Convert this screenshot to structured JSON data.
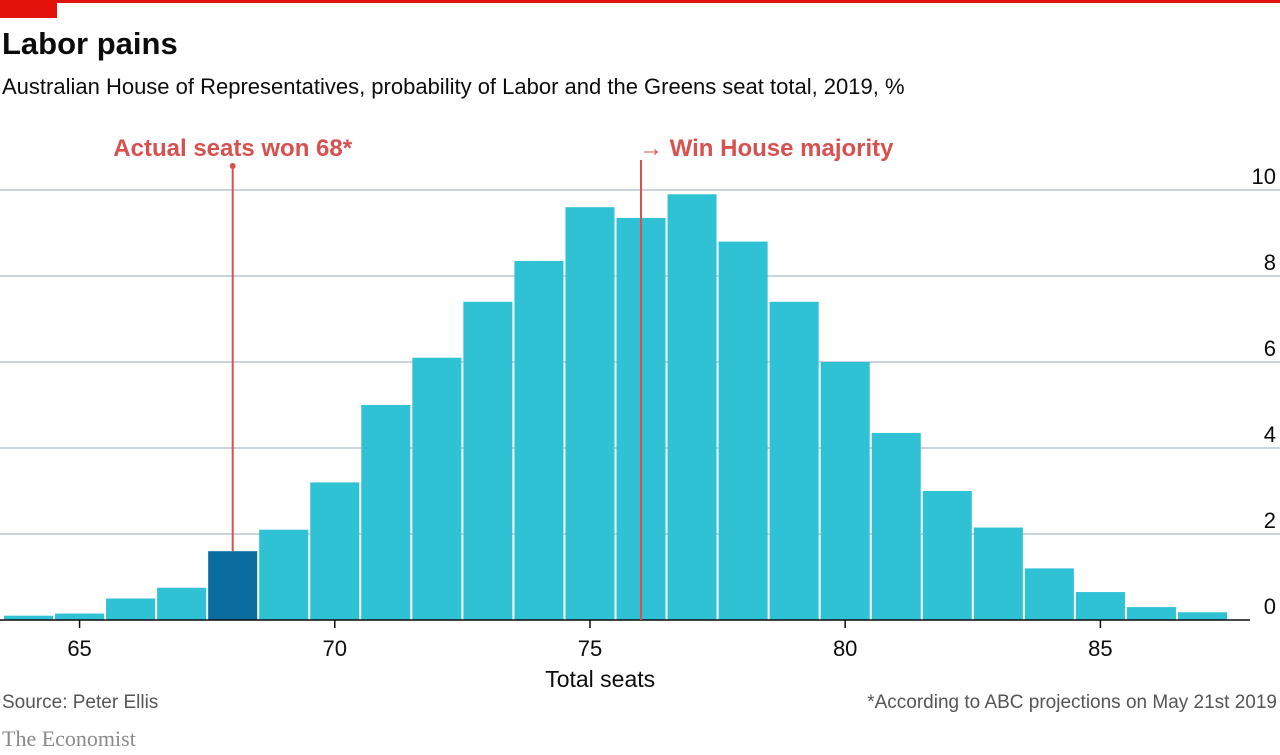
{
  "header": {
    "title": "Labor pains",
    "subtitle": "Australian House of Representatives, probability of Labor and the Greens seat total, 2019, %"
  },
  "footer": {
    "source": "Source: Peter Ellis",
    "footnote": "*According to ABC projections on May 21st 2019",
    "brand": "The Economist"
  },
  "colors": {
    "accent": "#e3120b",
    "bar": "#2fc1d4",
    "highlight_bar": "#0b6d9f",
    "annotation": "#d7514f",
    "grid": "#b7c6d3"
  },
  "chart_data": {
    "type": "bar",
    "xlabel": "Total seats",
    "ylabel": "",
    "x": [
      64,
      65,
      66,
      67,
      68,
      69,
      70,
      71,
      72,
      73,
      74,
      75,
      76,
      77,
      78,
      79,
      80,
      81,
      82,
      83,
      84,
      85,
      86,
      87
    ],
    "values": [
      0.1,
      0.15,
      0.5,
      0.75,
      1.6,
      2.1,
      3.2,
      5.0,
      6.1,
      7.4,
      8.35,
      9.6,
      9.35,
      9.9,
      8.8,
      7.4,
      6.0,
      4.35,
      3.0,
      2.15,
      1.2,
      0.65,
      0.3,
      0.18
    ],
    "highlight_x": 68,
    "xlim": [
      63.5,
      87.5
    ],
    "ylim": [
      0,
      10
    ],
    "x_ticks": [
      "65",
      "70",
      "75",
      "80",
      "85"
    ],
    "x_tick_values": [
      65,
      70,
      75,
      80,
      85
    ],
    "y_ticks": [
      "0",
      "2",
      "4",
      "6",
      "8",
      "10"
    ],
    "y_tick_values": [
      0,
      2,
      4,
      6,
      8,
      10
    ],
    "grid": true,
    "annotations": [
      {
        "text": "Actual seats won 68*",
        "x": 68
      },
      {
        "text": "→ Win House majority",
        "x": 76
      }
    ]
  }
}
